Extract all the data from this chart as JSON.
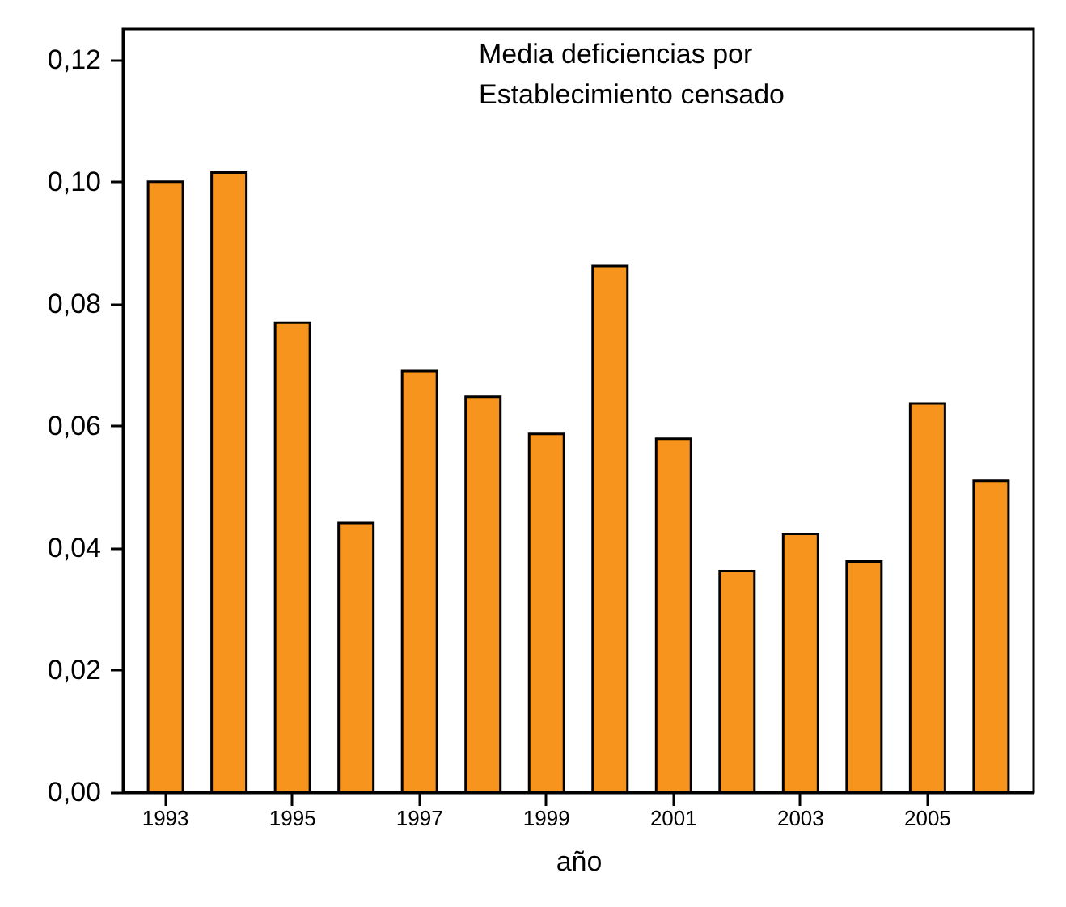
{
  "chart_data": {
    "type": "bar",
    "xlabel": "año",
    "annotations": [
      "Media deficiencias por\nEstablecimiento censado"
    ],
    "categories": [
      "1993",
      null,
      "1995",
      null,
      "1997",
      null,
      "1999",
      null,
      "2001",
      null,
      "2003",
      null,
      "2005",
      null
    ],
    "values": [
      0.1,
      0.1015,
      0.0769,
      0.0441,
      0.069,
      0.0648,
      0.0587,
      0.0862,
      0.0579,
      0.0362,
      0.0423,
      0.0378,
      0.0637,
      0.051
    ],
    "color": "#f7941d",
    "ylim": [
      0,
      0.125
    ],
    "yticks": [
      {
        "value": 0,
        "label": "0,00"
      },
      {
        "value": 0.02,
        "label": "0,02"
      },
      {
        "value": 0.04,
        "label": "0,04"
      },
      {
        "value": 0.06,
        "label": "0,06"
      },
      {
        "value": 0.08,
        "label": "0,08"
      },
      {
        "value": 0.1,
        "label": "0,10"
      },
      {
        "value": 0.12,
        "label": "0,12"
      }
    ],
    "grid": false
  }
}
